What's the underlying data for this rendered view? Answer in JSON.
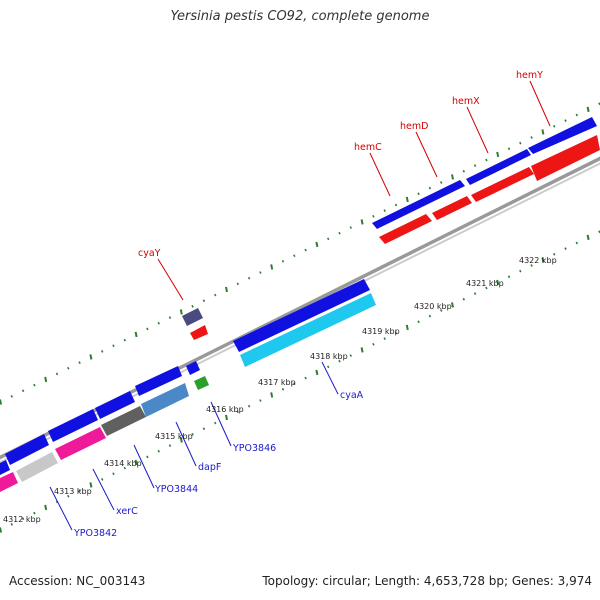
{
  "title": "Yersinia pestis CO92, complete genome",
  "footer": {
    "accession": "Accession: NC_003143",
    "summary": "Topology: circular; Length: 4,653,728 bp; Genes: 3,974"
  },
  "colors": {
    "background": "#ffffff",
    "backbone": "#888888",
    "tick": "#2e7d32",
    "forward_label": "#d40000",
    "reverse_label": "#1a1acc"
  },
  "map": {
    "tick_labels": [
      "4312 kbp",
      "4313 kbp",
      "4314 kbp",
      "4315 kbp",
      "4316 kbp",
      "4317 kbp",
      "4318 kbp",
      "4319 kbp",
      "4320 kbp",
      "4321 kbp",
      "4322 kbp"
    ],
    "forward_genes": [
      "cyaY",
      "hemC",
      "hemD",
      "hemX",
      "hemY"
    ],
    "reverse_genes": [
      "YPO3842",
      "xerC",
      "YPO3844",
      "dapF",
      "YPO3846",
      "cyaA"
    ]
  }
}
